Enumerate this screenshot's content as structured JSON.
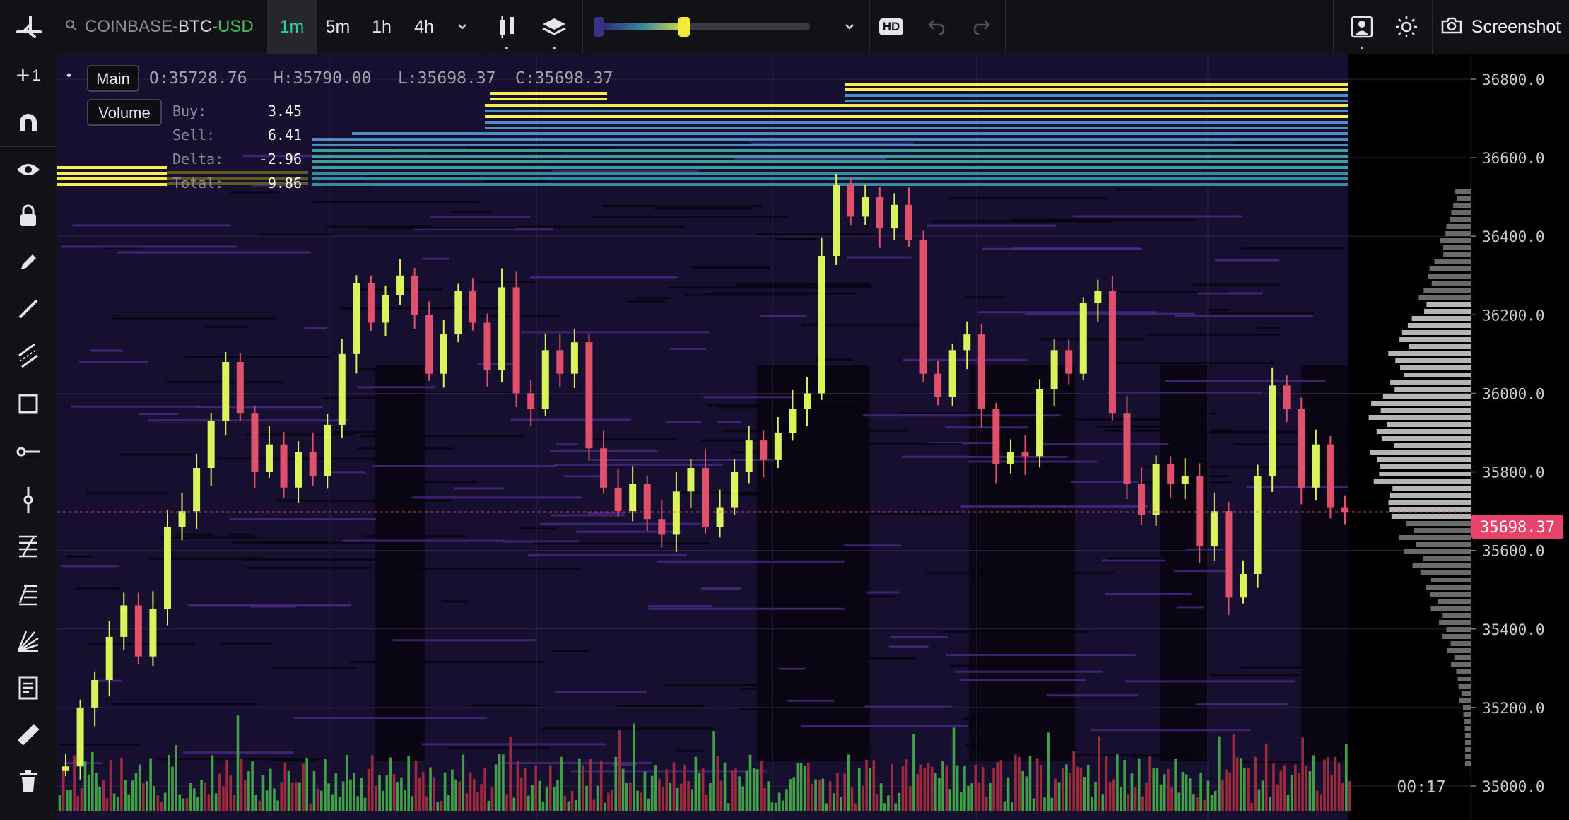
{
  "header": {
    "symbol_exchange": "COINBASE",
    "symbol_base": "BTC",
    "symbol_quote": "USD",
    "timeframes": [
      "1m",
      "5m",
      "1h",
      "4h"
    ],
    "active_timeframe": "1m",
    "hd_badge": "HD",
    "screenshot_label": "Screenshot"
  },
  "sidebar": {
    "add_label": "1"
  },
  "legend": {
    "main_label": "Main",
    "volume_label": "Volume",
    "ohlc": {
      "o": "O:35728.76",
      "h": "H:35790.00",
      "l": "L:35698.37",
      "c": "C:35698.37"
    },
    "stats": [
      {
        "label": "Buy:",
        "value": "3.45"
      },
      {
        "label": "Sell:",
        "value": "6.41"
      },
      {
        "label": "Delta:",
        "value": "-2.96"
      },
      {
        "label": "Total:",
        "value": "9.86"
      }
    ]
  },
  "price_axis": {
    "ticks": [
      "36800.0",
      "36600.0",
      "36400.0",
      "36200.0",
      "36000.0",
      "35800.0",
      "35600.0",
      "35400.0",
      "35200.0",
      "35000.0"
    ],
    "current_price": "35698.37",
    "countdown": "00:17"
  },
  "colors": {
    "up": "#d9f35a",
    "down": "#e0506a",
    "vol_up": "#3fa046",
    "vol_down": "#9a2a3c",
    "price_tag": "#e8436a",
    "heatmap_base": "#1a1436",
    "orderbook_high": "#f5f04a",
    "orderbook_mid": "#4d8ec4",
    "profile": "#b5b5b5"
  },
  "chart_data": {
    "type": "candlestick",
    "ylim": [
      35000,
      36800
    ],
    "series": [
      {
        "name": "price",
        "close": [
          35050,
          35200,
          35270,
          35380,
          35460,
          35330,
          35450,
          35660,
          35700,
          35810,
          35930,
          36080,
          35950,
          35800,
          35870,
          35760,
          35850,
          35790,
          35920,
          36100,
          36280,
          36180,
          36250,
          36300,
          36200,
          36050,
          36150,
          36260,
          36180,
          36060,
          36270,
          36000,
          35960,
          36110,
          36050,
          36130,
          35860,
          35760,
          35700,
          35770,
          35680,
          35640,
          35750,
          35810,
          35660,
          35710,
          35800,
          35880,
          35830,
          35900,
          35960,
          36000,
          36350,
          36530,
          36450,
          36500,
          36420,
          36480,
          36390,
          36050,
          35990,
          36110,
          36150,
          35960,
          35820,
          35850,
          35840,
          36010,
          36110,
          36050,
          36230,
          36260,
          35950,
          35770,
          35690,
          35820,
          35770,
          35790,
          35610,
          35700,
          35480,
          35540,
          35790,
          36020,
          35960,
          35760,
          35870,
          35710,
          35698.37
        ]
      }
    ]
  }
}
